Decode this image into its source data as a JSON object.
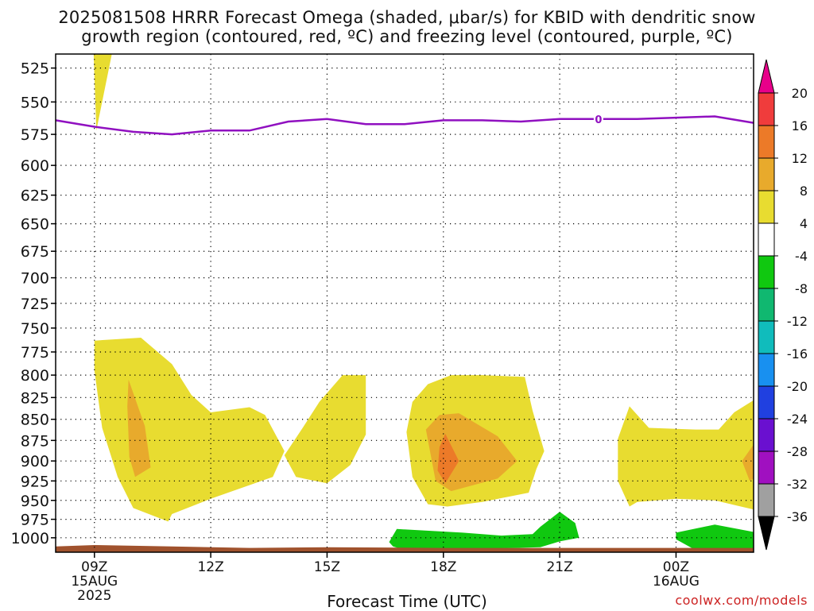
{
  "title_line1": "2025081508 HRRR Forecast Omega (shaded, μbar/s) for KBID with dendritic snow",
  "title_line2": "growth region (contoured, red, ºC) and freezing level (contoured, purple, ºC)",
  "xlabel": "Forecast Time (UTC)",
  "credit": "coolwx.com/models",
  "chart_data": {
    "type": "heatmap",
    "y_axis": {
      "ticks": [
        525,
        550,
        575,
        600,
        625,
        650,
        675,
        700,
        725,
        750,
        775,
        800,
        825,
        850,
        875,
        900,
        925,
        950,
        975,
        1000
      ],
      "range": [
        515,
        1020
      ],
      "scale": "log-pressure",
      "grid": true
    },
    "x_axis": {
      "range_hours": [
        8,
        26
      ],
      "ticks": [
        {
          "hour": 9,
          "lines": [
            "09Z",
            "15AUG",
            "2025"
          ]
        },
        {
          "hour": 12,
          "lines": [
            "12Z"
          ]
        },
        {
          "hour": 15,
          "lines": [
            "15Z"
          ]
        },
        {
          "hour": 18,
          "lines": [
            "18Z"
          ]
        },
        {
          "hour": 21,
          "lines": [
            "21Z"
          ]
        },
        {
          "hour": 24,
          "lines": [
            "00Z",
            "16AUG"
          ]
        }
      ],
      "grid": true
    },
    "colorbar": {
      "labels": [
        "20",
        "16",
        "12",
        "8",
        "4",
        "-4",
        "-8",
        "-12",
        "-16",
        "-20",
        "-24",
        "-28",
        "-32",
        "-36"
      ],
      "colors": [
        "#e8008a",
        "#f03c3c",
        "#ec7a28",
        "#e8aa2c",
        "#e8dc30",
        "#ffffff",
        "#10c810",
        "#10b870",
        "#10bcbc",
        "#1890f0",
        "#2040e0",
        "#6a10d0",
        "#a010c0",
        "#a0a0a0",
        "#000000"
      ]
    },
    "freezing_level": {
      "color": "#9010c0",
      "label": "0",
      "points": [
        [
          8,
          564
        ],
        [
          9,
          569
        ],
        [
          10,
          573
        ],
        [
          11,
          575
        ],
        [
          12,
          572
        ],
        [
          13,
          572
        ],
        [
          14,
          565
        ],
        [
          15,
          563
        ],
        [
          16,
          567
        ],
        [
          17,
          567
        ],
        [
          18,
          564
        ],
        [
          19,
          564
        ],
        [
          20,
          565
        ],
        [
          21,
          563
        ],
        [
          22,
          563
        ],
        [
          23,
          563
        ],
        [
          24,
          562
        ],
        [
          25,
          561
        ],
        [
          26,
          566
        ]
      ]
    },
    "regions": [
      {
        "name": "omega-4-8-spike",
        "color": "#e8dc30",
        "points": [
          [
            8.98,
            515
          ],
          [
            9.45,
            515
          ],
          [
            9.05,
            572
          ]
        ]
      },
      {
        "name": "omega-4-8-main",
        "color": "#e8dc30",
        "points": [
          [
            9.0,
            763
          ],
          [
            10.2,
            760
          ],
          [
            11.0,
            788
          ],
          [
            11.5,
            822
          ],
          [
            12.0,
            842
          ],
          [
            13.0,
            836
          ],
          [
            13.4,
            845
          ],
          [
            13.9,
            888
          ],
          [
            13.6,
            920
          ],
          [
            12.0,
            948
          ],
          [
            11.0,
            968
          ],
          [
            10.9,
            978
          ],
          [
            10.0,
            960
          ],
          [
            9.6,
            920
          ],
          [
            9.2,
            860
          ],
          [
            9.0,
            795
          ]
        ]
      },
      {
        "name": "omega-8-12-main",
        "color": "#e8aa2c",
        "points": [
          [
            9.88,
            805
          ],
          [
            10.3,
            858
          ],
          [
            10.45,
            908
          ],
          [
            10.05,
            920
          ],
          [
            9.9,
            895
          ],
          [
            9.85,
            835
          ]
        ]
      },
      {
        "name": "omega-4-8-center",
        "color": "#e8dc30",
        "points": [
          [
            15.4,
            800
          ],
          [
            16.0,
            800
          ],
          [
            16.0,
            868
          ],
          [
            15.6,
            905
          ],
          [
            15.0,
            928
          ],
          [
            14.2,
            920
          ],
          [
            13.9,
            893
          ],
          [
            14.4,
            858
          ],
          [
            14.8,
            830
          ]
        ]
      },
      {
        "name": "omega-4-8-east",
        "color": "#e8dc30",
        "points": [
          [
            17.05,
            865
          ],
          [
            17.2,
            830
          ],
          [
            17.6,
            810
          ],
          [
            18.2,
            800
          ],
          [
            19.0,
            800
          ],
          [
            20.1,
            802
          ],
          [
            20.3,
            840
          ],
          [
            20.6,
            888
          ],
          [
            20.4,
            910
          ],
          [
            20.2,
            940
          ],
          [
            19.0,
            952
          ],
          [
            18.1,
            958
          ],
          [
            17.6,
            955
          ],
          [
            17.2,
            920
          ]
        ]
      },
      {
        "name": "omega-8-12-east",
        "color": "#e8aa2c",
        "points": [
          [
            17.55,
            862
          ],
          [
            17.9,
            845
          ],
          [
            18.4,
            843
          ],
          [
            19.4,
            870
          ],
          [
            19.9,
            900
          ],
          [
            19.4,
            922
          ],
          [
            18.2,
            938
          ],
          [
            17.8,
            925
          ]
        ]
      },
      {
        "name": "omega-12-16-east",
        "color": "#ec7a28",
        "points": [
          [
            17.9,
            883
          ],
          [
            18.05,
            867
          ],
          [
            18.4,
            900
          ],
          [
            18.05,
            928
          ],
          [
            17.85,
            912
          ]
        ]
      },
      {
        "name": "omega-4-8-late",
        "color": "#e8dc30",
        "points": [
          [
            22.5,
            873
          ],
          [
            22.8,
            835
          ],
          [
            23.3,
            860
          ],
          [
            24.5,
            862
          ],
          [
            25.1,
            862
          ],
          [
            25.5,
            842
          ],
          [
            26.0,
            828
          ],
          [
            26.0,
            962
          ],
          [
            25.0,
            950
          ],
          [
            24.0,
            948
          ],
          [
            23.0,
            952
          ],
          [
            22.8,
            958
          ],
          [
            22.5,
            925
          ]
        ]
      },
      {
        "name": "omega-8-12-late",
        "color": "#e8aa2c",
        "points": [
          [
            26.0,
            880
          ],
          [
            25.7,
            900
          ],
          [
            25.9,
            925
          ],
          [
            26.0,
            922
          ]
        ]
      },
      {
        "name": "omega-neg-green-1",
        "color": "#10c810",
        "points": [
          [
            16.6,
            1006
          ],
          [
            16.8,
            988
          ],
          [
            18.5,
            993
          ],
          [
            19.5,
            997
          ],
          [
            20.3,
            995
          ],
          [
            20.5,
            985
          ],
          [
            21.0,
            965
          ],
          [
            21.4,
            980
          ],
          [
            21.5,
            1000
          ],
          [
            21.0,
            1005
          ],
          [
            20.5,
            1013
          ],
          [
            18.5,
            1016
          ],
          [
            17.0,
            1017
          ],
          [
            16.7,
            1012
          ]
        ]
      },
      {
        "name": "omega-neg-green-2",
        "color": "#10c810",
        "points": [
          [
            24.0,
            1002
          ],
          [
            24.0,
            993
          ],
          [
            25.0,
            982
          ],
          [
            26.0,
            992
          ],
          [
            26.0,
            1017
          ],
          [
            24.5,
            1017
          ]
        ]
      },
      {
        "name": "terrain",
        "color": "#a0522d",
        "points": [
          [
            8.0,
            1012
          ],
          [
            9.0,
            1010
          ],
          [
            11.0,
            1012
          ],
          [
            13.0,
            1014
          ],
          [
            15.0,
            1013
          ],
          [
            18.0,
            1014
          ],
          [
            22.0,
            1014
          ],
          [
            26.0,
            1014
          ],
          [
            26.0,
            1020
          ],
          [
            8.0,
            1020
          ]
        ]
      }
    ]
  }
}
